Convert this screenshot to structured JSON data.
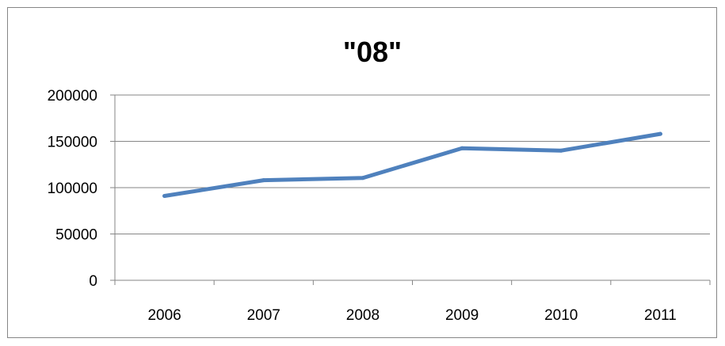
{
  "chart_data": {
    "type": "line",
    "title": "\"08\"",
    "xlabel": "",
    "ylabel": "",
    "categories": [
      "2006",
      "2007",
      "2008",
      "2009",
      "2010",
      "2011"
    ],
    "series": [
      {
        "values": [
          91000,
          108000,
          110500,
          142500,
          140000,
          158000
        ],
        "color": "#4f81bd"
      }
    ],
    "ylim": [
      0,
      200000
    ],
    "yticks": [
      0,
      50000,
      100000,
      150000,
      200000
    ],
    "ytick_labels": [
      "0",
      "50000",
      "100000",
      "150000",
      "200000"
    ],
    "grid": true,
    "legend": "none",
    "colors": {
      "line": "#4f81bd",
      "grid": "#868686",
      "axis": "#868686",
      "text": "#000000"
    }
  }
}
